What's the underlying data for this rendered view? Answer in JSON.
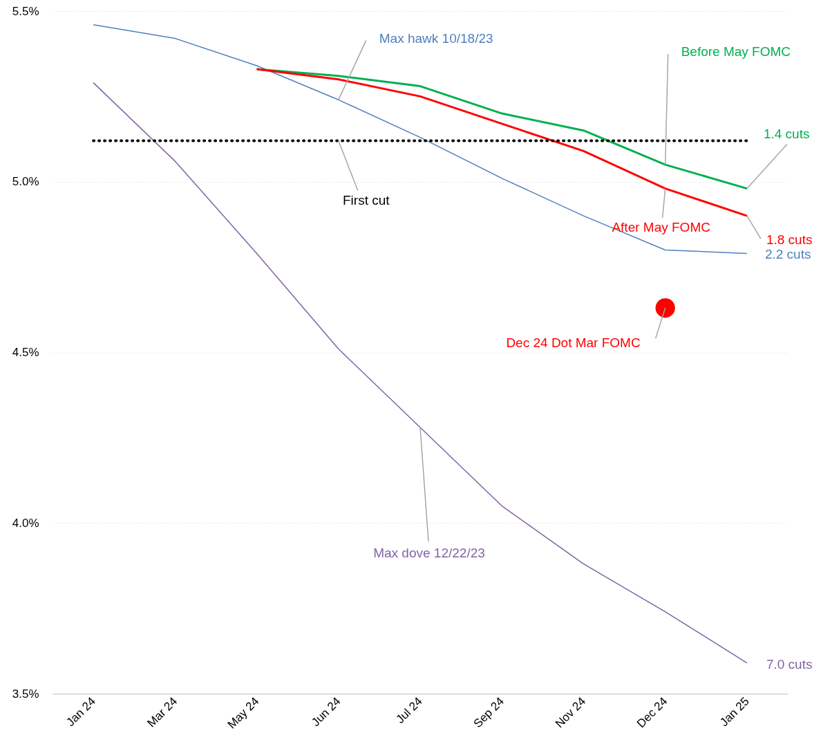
{
  "chart_data": {
    "type": "line",
    "categories": [
      "Jan 24",
      "Mar 24",
      "May 24",
      "Jun 24",
      "Jul 24",
      "Sep 24",
      "Nov 24",
      "Dec 24",
      "Jan 25"
    ],
    "series": [
      {
        "name": "Max hawk 10/18/23",
        "color": "#4f81bd",
        "values": [
          5.46,
          5.42,
          5.34,
          5.24,
          5.13,
          5.01,
          4.9,
          4.8,
          4.79
        ]
      },
      {
        "name": "Max dove 12/22/23",
        "color": "#8064a2",
        "values": [
          5.29,
          5.06,
          4.79,
          4.51,
          4.28,
          4.05,
          3.88,
          3.74,
          3.59
        ]
      },
      {
        "name": "Before May FOMC",
        "color": "#00b050",
        "values": [
          null,
          null,
          5.33,
          5.31,
          5.28,
          5.2,
          5.15,
          5.05,
          4.98
        ]
      },
      {
        "name": "After May FOMC",
        "color": "#ff0000",
        "values": [
          null,
          null,
          5.33,
          5.3,
          5.25,
          5.17,
          5.09,
          4.98,
          4.9
        ]
      },
      {
        "name": "Dec 24 Dot Mar FOMC",
        "type": "scatter",
        "marker": "circle",
        "color": "#ff0000",
        "values": [
          null,
          null,
          null,
          null,
          null,
          null,
          null,
          4.63,
          null
        ]
      }
    ],
    "ylim": [
      3.5,
      5.5
    ],
    "yticks": [
      {
        "value": 3.5,
        "label": "3.5%"
      },
      {
        "value": 4.0,
        "label": "4.0%"
      },
      {
        "value": 4.5,
        "label": "4.5%"
      },
      {
        "value": 5.0,
        "label": "5.0%"
      },
      {
        "value": 5.5,
        "label": "5.5%"
      }
    ],
    "ref_lines": [
      {
        "axis": "y",
        "value": 5.12,
        "label": "First cut",
        "color": "#000000",
        "line_style": "dotted"
      }
    ],
    "annotations": [
      {
        "text": "2.2 cuts",
        "x": "Jan 25",
        "y": 4.79
      },
      {
        "text": "7.0 cuts",
        "x": "Jan 25",
        "y": 3.59
      },
      {
        "text": "1.4 cuts",
        "x": "Jan 25",
        "y": 4.98
      },
      {
        "text": "1.8 cuts",
        "x": "Jan 25",
        "y": 4.9
      }
    ],
    "grid": "y",
    "line_style": "solid"
  }
}
